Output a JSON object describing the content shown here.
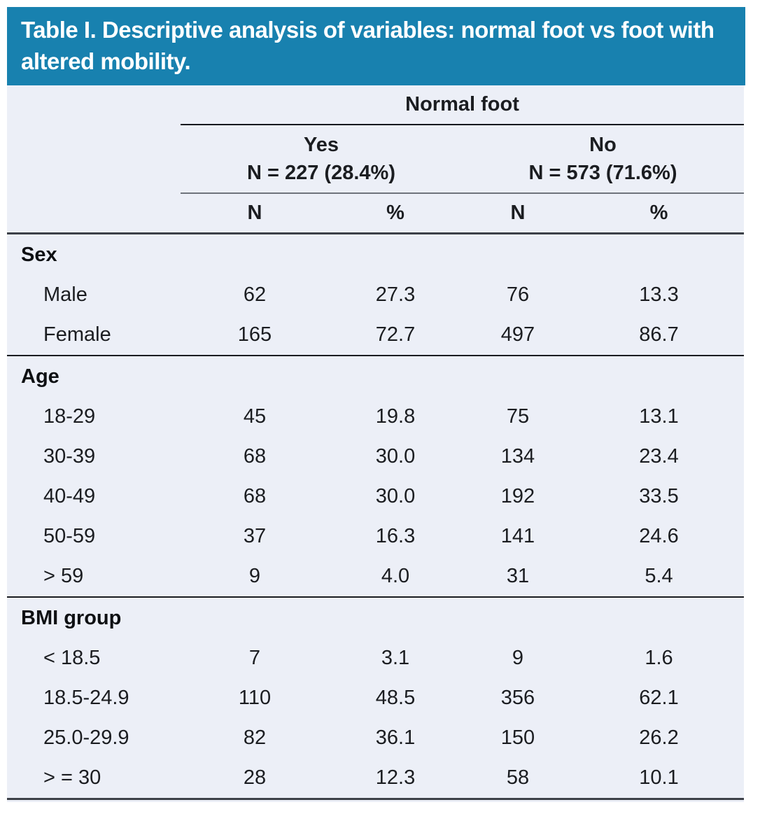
{
  "title": "Table I. Descriptive analysis of variables: normal foot vs foot with altered mobility.",
  "colors": {
    "header_bg": "#1881AF",
    "header_text": "#FFFFFF",
    "body_bg": "#ECEFF7",
    "text": "#1B1D21",
    "rule_dark": "#15181D",
    "rule_gray": "#6E737B",
    "rule_heavy": "#3D4148"
  },
  "chart_data": {
    "type": "table",
    "title": "Table I. Descriptive analysis of variables: normal foot vs foot with altered mobility.",
    "group_header": "Normal foot",
    "columns": [
      {
        "label": "Yes",
        "sublabel": "N = 227 (28.4%)"
      },
      {
        "label": "No",
        "sublabel": "N = 573 (71.6%)"
      }
    ],
    "subcolumns": [
      "N",
      "%",
      "N",
      "%"
    ],
    "sections": [
      {
        "label": "Sex",
        "rows": [
          {
            "label": "Male",
            "values": [
              "62",
              "27.3",
              "76",
              "13.3"
            ]
          },
          {
            "label": "Female",
            "values": [
              "165",
              "72.7",
              "497",
              "86.7"
            ]
          }
        ]
      },
      {
        "label": "Age",
        "rows": [
          {
            "label": "18-29",
            "values": [
              "45",
              "19.8",
              "75",
              "13.1"
            ]
          },
          {
            "label": "30-39",
            "values": [
              "68",
              "30.0",
              "134",
              "23.4"
            ]
          },
          {
            "label": "40-49",
            "values": [
              "68",
              "30.0",
              "192",
              "33.5"
            ]
          },
          {
            "label": "50-59",
            "values": [
              "37",
              "16.3",
              "141",
              "24.6"
            ]
          },
          {
            "label": "> 59",
            "values": [
              "9",
              "4.0",
              "31",
              "5.4"
            ]
          }
        ]
      },
      {
        "label": "BMI group",
        "rows": [
          {
            "label": "< 18.5",
            "values": [
              "7",
              "3.1",
              "9",
              "1.6"
            ]
          },
          {
            "label": "18.5-24.9",
            "values": [
              "110",
              "48.5",
              "356",
              "62.1"
            ]
          },
          {
            "label": "25.0-29.9",
            "values": [
              "82",
              "36.1",
              "150",
              "26.2"
            ]
          },
          {
            "label": "> = 30",
            "values": [
              "28",
              "12.3",
              "58",
              "10.1"
            ]
          }
        ]
      }
    ]
  }
}
